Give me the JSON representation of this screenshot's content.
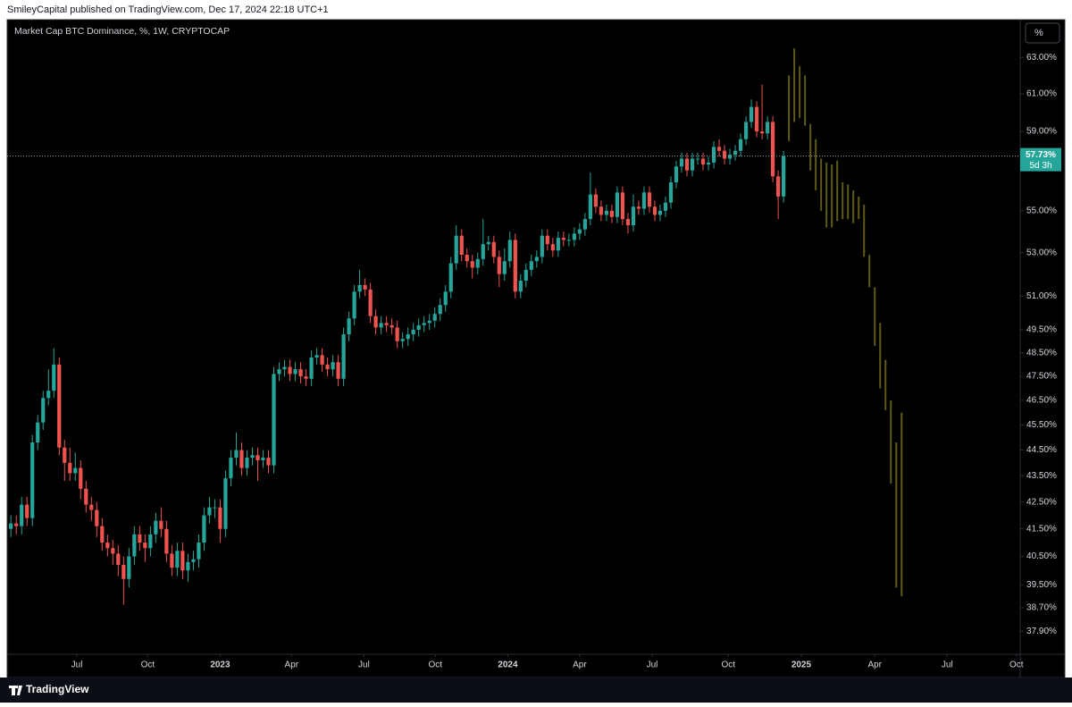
{
  "header": {
    "publisher": "SmileyCapital published on TradingView.com, Dec 17, 2024 22:18 UTC+1"
  },
  "footer": {
    "brand": "TradingView"
  },
  "chart_data": {
    "type": "candlestick",
    "title": "Market Cap BTC Dominance, %, 1W, CRYPTOCAP",
    "scale_button": "%",
    "log_scale": true,
    "grid": false,
    "ylim": [
      37.14,
      65.14
    ],
    "yticks": [
      {
        "value": 63,
        "label": "63.00%"
      },
      {
        "value": 61,
        "label": "61.00%"
      },
      {
        "value": 59,
        "label": "59.00%"
      },
      {
        "value": 55,
        "label": "55.00%"
      },
      {
        "value": 53,
        "label": "53.00%"
      },
      {
        "value": 51,
        "label": "51.00%"
      },
      {
        "value": 49.5,
        "label": "49.50%"
      },
      {
        "value": 48.5,
        "label": "48.50%"
      },
      {
        "value": 47.5,
        "label": "47.50%"
      },
      {
        "value": 46.5,
        "label": "46.50%"
      },
      {
        "value": 45.5,
        "label": "45.50%"
      },
      {
        "value": 44.5,
        "label": "44.50%"
      },
      {
        "value": 43.5,
        "label": "43.50%"
      },
      {
        "value": 42.5,
        "label": "42.50%"
      },
      {
        "value": 41.5,
        "label": "41.50%"
      },
      {
        "value": 40.5,
        "label": "40.50%"
      },
      {
        "value": 39.5,
        "label": "39.50%"
      },
      {
        "value": 38.7,
        "label": "38.70%"
      },
      {
        "value": 37.9,
        "label": "37.90%"
      }
    ],
    "xlim": [
      -0.7,
      188.1
    ],
    "xticks": [
      {
        "value": 12.3,
        "label": "Jul"
      },
      {
        "value": 25.5,
        "label": "Oct"
      },
      {
        "value": 39,
        "label": "2023"
      },
      {
        "value": 52.3,
        "label": "Apr"
      },
      {
        "value": 65.8,
        "label": "Jul"
      },
      {
        "value": 79.1,
        "label": "Oct"
      },
      {
        "value": 92.6,
        "label": "2024"
      },
      {
        "value": 106,
        "label": "Apr"
      },
      {
        "value": 119.5,
        "label": "Jul"
      },
      {
        "value": 133.7,
        "label": "Oct"
      },
      {
        "value": 147.3,
        "label": "2025"
      },
      {
        "value": 161,
        "label": "Apr"
      },
      {
        "value": 174.5,
        "label": "Jul"
      },
      {
        "value": 187.4,
        "label": "Oct"
      }
    ],
    "last_price": {
      "value": 57.73,
      "label": "57.73%",
      "countdown": "5d 3h",
      "color": "#26a69a"
    },
    "series": [
      {
        "up_color": "#26a69a",
        "down_color": "#ef5350",
        "open": [
          41.5,
          41.7,
          41.6,
          42.4,
          41.9,
          44.8,
          45.6,
          46.6,
          46.9,
          48.0,
          44.6,
          44.0,
          43.6,
          43.8,
          43.0,
          42.4,
          42.2,
          41.6,
          41.0,
          40.8,
          40.6,
          40.2,
          39.7,
          40.5,
          41.3,
          41.0,
          40.8,
          41.3,
          41.8,
          41.5,
          40.6,
          40.1,
          40.7,
          40.0,
          40.3,
          40.4,
          41.0,
          42.0,
          42.3,
          42.3,
          41.5,
          43.4,
          44.2,
          44.5,
          43.8,
          44.2,
          44.3,
          44.1,
          44.2,
          43.9,
          47.6,
          47.8,
          47.9,
          47.6,
          47.8,
          47.5,
          47.4,
          48.3,
          48.4,
          48.0,
          47.8,
          48.1,
          47.4,
          49.3,
          50.0,
          51.2,
          51.5,
          51.3,
          50.1,
          49.6,
          49.8,
          49.7,
          49.6,
          49.0,
          49.1,
          49.3,
          49.5,
          49.7,
          49.8,
          49.9,
          50.2,
          50.6,
          51.2,
          52.5,
          53.8,
          52.9,
          52.6,
          52.3,
          52.7,
          53.4,
          53.5,
          52.8,
          52.0,
          52.6,
          53.6,
          51.2,
          51.7,
          52.2,
          52.6,
          52.8,
          53.8,
          53.4,
          53.1,
          53.7,
          53.6,
          53.6,
          53.9,
          54.1,
          54.6,
          55.8,
          55.2,
          54.8,
          55.0,
          54.7,
          55.9,
          54.6,
          54.3,
          55.2,
          55.1,
          55.9,
          55.2,
          54.8,
          55.0,
          55.4,
          56.4,
          57.2,
          57.6,
          57.0,
          57.6,
          57.6,
          57.3,
          57.4,
          58.2,
          58.0,
          57.6,
          57.8,
          58.0,
          58.6,
          59.5,
          60.3,
          59.0,
          58.9,
          59.5,
          56.7,
          55.7
        ],
        "high": [
          42.0,
          42.0,
          42.7,
          42.7,
          45.1,
          45.9,
          46.9,
          47.8,
          48.7,
          48.3,
          44.9,
          44.6,
          44.4,
          44.1,
          43.3,
          42.7,
          42.5,
          41.9,
          41.3,
          41.1,
          40.9,
          40.5,
          40.8,
          41.6,
          41.6,
          41.3,
          41.6,
          42.1,
          42.3,
          41.8,
          40.9,
          41.0,
          41.0,
          40.6,
          40.7,
          41.3,
          42.3,
          42.7,
          42.6,
          42.6,
          43.7,
          44.5,
          45.2,
          44.8,
          44.5,
          44.6,
          44.6,
          44.5,
          44.5,
          47.9,
          48.1,
          48.2,
          48.2,
          48.1,
          48.1,
          47.8,
          48.6,
          48.7,
          48.7,
          48.3,
          48.4,
          48.4,
          49.6,
          50.3,
          51.5,
          52.2,
          51.8,
          51.6,
          50.4,
          50.1,
          50.1,
          50.0,
          49.9,
          49.4,
          49.6,
          49.8,
          50.0,
          50.1,
          50.2,
          50.5,
          50.9,
          51.5,
          52.8,
          54.3,
          54.1,
          53.2,
          52.9,
          53.0,
          54.6,
          53.8,
          53.8,
          53.1,
          53.2,
          54.0,
          53.9,
          52.0,
          52.5,
          52.9,
          53.1,
          54.1,
          54.1,
          53.7,
          54.0,
          54.0,
          53.9,
          54.2,
          54.4,
          54.9,
          56.9,
          56.1,
          55.5,
          55.3,
          55.3,
          56.2,
          56.2,
          54.9,
          55.8,
          55.5,
          56.2,
          56.2,
          55.5,
          55.3,
          55.7,
          56.7,
          57.5,
          57.9,
          57.9,
          57.9,
          57.9,
          57.9,
          57.7,
          58.5,
          58.6,
          58.3,
          58.1,
          58.3,
          58.9,
          59.8,
          60.7,
          60.6,
          61.5,
          59.8,
          59.8,
          57.0,
          58.0
        ],
        "low": [
          41.2,
          41.3,
          41.3,
          41.6,
          41.6,
          44.5,
          45.3,
          46.3,
          46.6,
          44.3,
          43.3,
          43.3,
          43.3,
          42.6,
          42.1,
          41.8,
          41.2,
          40.7,
          40.5,
          40.2,
          39.8,
          38.8,
          39.4,
          40.2,
          40.7,
          40.3,
          40.5,
          41.0,
          41.2,
          40.3,
          39.8,
          39.8,
          39.7,
          39.6,
          40.0,
          40.1,
          40.7,
          41.7,
          41.9,
          41.0,
          41.2,
          43.1,
          43.9,
          43.5,
          43.5,
          43.9,
          43.3,
          43.8,
          43.6,
          43.6,
          47.3,
          47.5,
          47.3,
          47.3,
          47.2,
          47.1,
          47.1,
          48.0,
          47.7,
          47.5,
          47.5,
          47.1,
          47.1,
          49.0,
          49.7,
          50.9,
          51.0,
          49.8,
          49.3,
          49.3,
          49.4,
          49.3,
          48.7,
          48.7,
          48.8,
          49.0,
          49.2,
          49.4,
          49.5,
          49.6,
          49.9,
          50.3,
          50.9,
          52.2,
          52.6,
          52.3,
          51.8,
          52.0,
          52.4,
          53.1,
          52.5,
          51.4,
          51.7,
          52.3,
          50.9,
          50.9,
          51.4,
          51.9,
          52.3,
          52.5,
          53.1,
          52.8,
          52.8,
          53.3,
          53.3,
          53.3,
          53.6,
          53.8,
          54.3,
          54.9,
          54.5,
          54.5,
          54.4,
          54.4,
          54.3,
          53.9,
          54.0,
          54.8,
          54.8,
          54.9,
          54.5,
          54.5,
          54.7,
          55.1,
          56.1,
          56.9,
          56.7,
          56.7,
          57.3,
          57.0,
          57.0,
          57.1,
          57.7,
          57.3,
          57.3,
          57.5,
          57.7,
          58.3,
          59.2,
          58.7,
          58.6,
          58.6,
          56.4,
          54.6,
          55.4
        ],
        "close": [
          41.7,
          41.6,
          42.4,
          41.9,
          44.8,
          45.6,
          46.6,
          46.9,
          48.0,
          44.6,
          44.0,
          43.6,
          43.8,
          43.0,
          42.4,
          42.2,
          41.6,
          41.0,
          40.8,
          40.6,
          40.2,
          39.7,
          40.5,
          41.3,
          41.0,
          40.8,
          41.3,
          41.8,
          41.5,
          40.6,
          40.1,
          40.7,
          40.0,
          40.3,
          40.4,
          41.0,
          42.0,
          42.3,
          42.3,
          41.5,
          43.4,
          44.2,
          44.5,
          43.8,
          44.2,
          44.3,
          44.1,
          44.2,
          43.9,
          47.6,
          47.8,
          47.9,
          47.6,
          47.8,
          47.5,
          47.4,
          48.3,
          48.4,
          48.0,
          47.8,
          48.1,
          47.4,
          49.3,
          50.0,
          51.2,
          51.5,
          51.3,
          50.1,
          49.6,
          49.8,
          49.7,
          49.6,
          49.0,
          49.1,
          49.3,
          49.5,
          49.7,
          49.8,
          49.9,
          50.2,
          50.6,
          51.2,
          52.5,
          53.8,
          52.9,
          52.6,
          52.3,
          52.7,
          53.4,
          53.5,
          52.8,
          52.0,
          52.6,
          53.6,
          51.2,
          51.7,
          52.2,
          52.6,
          52.8,
          53.8,
          53.4,
          53.1,
          53.7,
          53.6,
          53.6,
          53.9,
          54.1,
          54.6,
          55.8,
          55.2,
          54.8,
          55.0,
          54.7,
          55.9,
          54.6,
          54.3,
          55.2,
          55.1,
          55.9,
          55.2,
          54.8,
          55.0,
          55.4,
          56.4,
          57.2,
          57.6,
          57.0,
          57.6,
          57.6,
          57.3,
          57.4,
          58.2,
          58.0,
          57.6,
          57.8,
          58.0,
          58.6,
          59.5,
          60.3,
          59.0,
          58.9,
          59.5,
          56.7,
          55.7,
          57.73
        ]
      },
      {
        "color": "#5e5a1a",
        "high": [
          62.0,
          63.5,
          62.5,
          62.0,
          59.4,
          58.6,
          57.6,
          57.4,
          57.3,
          57.5,
          56.4,
          56.3,
          56.0,
          55.7,
          55.3,
          52.9,
          51.4,
          49.8,
          48.2,
          46.5,
          44.8,
          46.0
        ],
        "low": [
          58.5,
          59.5,
          59.7,
          59.3,
          57.0,
          56.0,
          55.0,
          54.2,
          54.2,
          54.5,
          54.6,
          54.6,
          54.4,
          54.6,
          52.8,
          51.4,
          48.8,
          47.0,
          46.1,
          43.2,
          39.4,
          39.1
        ]
      }
    ]
  }
}
